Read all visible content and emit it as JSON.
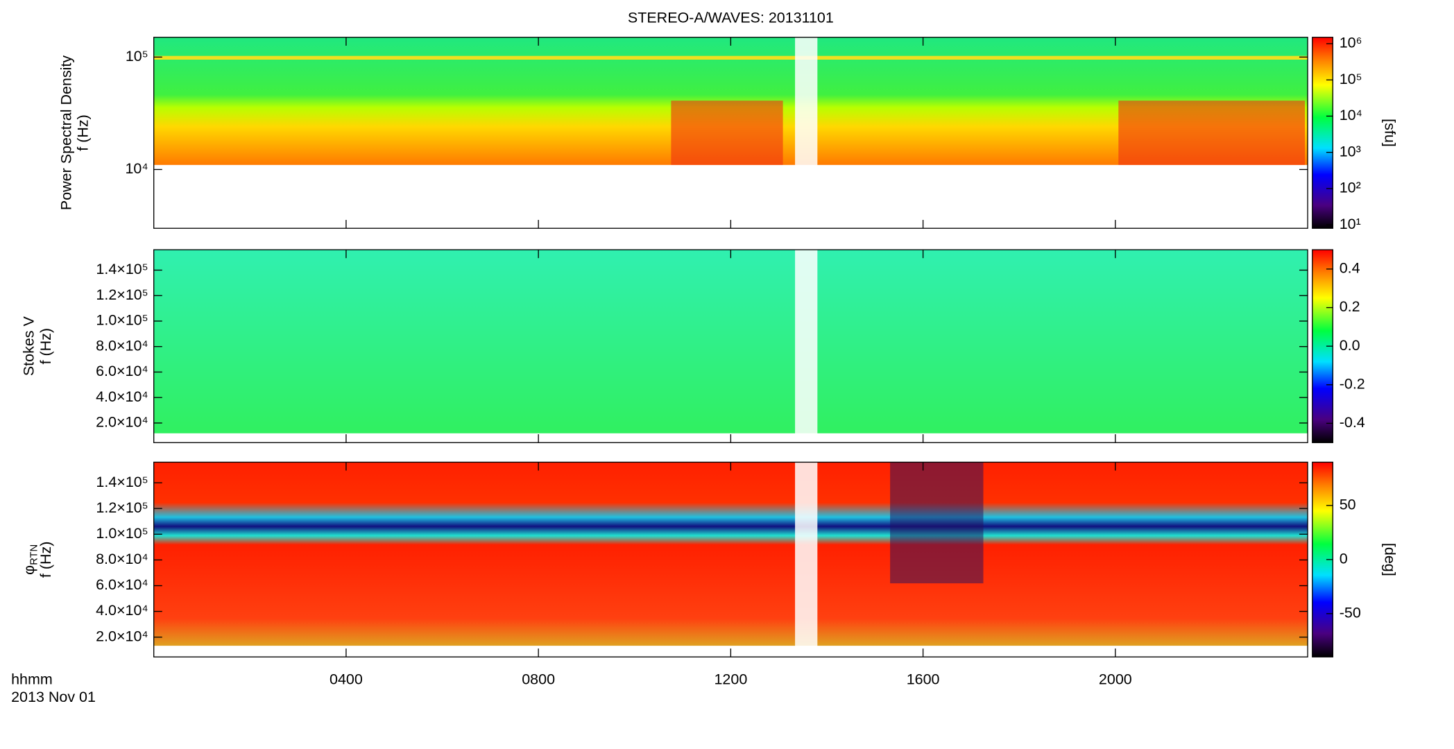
{
  "chart_data": [
    {
      "type": "heatmap",
      "title": "STEREO-A/WAVES: 20131101",
      "quantity": "Power Spectral Density",
      "ylabel": "f (Hz)",
      "ylog": true,
      "ylim": [
        3000,
        150000
      ],
      "yticks": [
        {
          "value": 10000,
          "label": "10⁴"
        },
        {
          "value": 100000,
          "label": "10⁵"
        }
      ],
      "xlim": [
        0,
        24
      ],
      "colorbar": {
        "label": "[sfu]",
        "log": true,
        "lim": [
          8,
          1500000
        ],
        "ticks": [
          {
            "value": 10,
            "label": "10¹"
          },
          {
            "value": 100,
            "label": "10²"
          },
          {
            "value": 1000,
            "label": "10³"
          },
          {
            "value": 10000,
            "label": "10⁴"
          },
          {
            "value": 100000,
            "label": "10⁵"
          },
          {
            "value": 1000000,
            "label": "10⁶"
          }
        ]
      }
    },
    {
      "type": "heatmap",
      "quantity": "Stokes V",
      "ylabel": "f (Hz)",
      "ylog": false,
      "ylim": [
        4600,
        156000
      ],
      "yticks": [
        {
          "value": 20000,
          "label": "2.0×10⁴"
        },
        {
          "value": 40000,
          "label": "4.0×10⁴"
        },
        {
          "value": 60000,
          "label": "6.0×10⁴"
        },
        {
          "value": 80000,
          "label": "8.0×10⁴"
        },
        {
          "value": 100000,
          "label": "1.0×10⁵"
        },
        {
          "value": 120000,
          "label": "1.2×10⁵"
        },
        {
          "value": 140000,
          "label": "1.4×10⁵"
        }
      ],
      "xlim": [
        0,
        24
      ],
      "colorbar": {
        "log": false,
        "lim": [
          -0.5,
          0.5
        ],
        "ticks": [
          0.4,
          0.2,
          {
            "value": 0,
            "label": "0.0"
          },
          -0.2,
          -0.4
        ]
      }
    },
    {
      "type": "heatmap",
      "quantity": "φ",
      "quantity_subscript": "RTN",
      "ylabel": "f (Hz)",
      "ylog": false,
      "ylim": [
        4600,
        156000
      ],
      "yticks": [
        {
          "value": 20000,
          "label": "2.0×10⁴"
        },
        {
          "value": 40000,
          "label": "4.0×10⁴"
        },
        {
          "value": 60000,
          "label": "6.0×10⁴"
        },
        {
          "value": 80000,
          "label": "8.0×10⁴"
        },
        {
          "value": 100000,
          "label": "1.0×10⁵"
        },
        {
          "value": 120000,
          "label": "1.2×10⁵"
        },
        {
          "value": 140000,
          "label": "1.4×10⁵"
        }
      ],
      "xlim": [
        0,
        24
      ],
      "xlabel": "hhmm",
      "date": "2013 Nov 01",
      "xticks": [
        {
          "value": 4,
          "label": "0400"
        },
        {
          "value": 8,
          "label": "0800"
        },
        {
          "value": 12,
          "label": "1200"
        },
        {
          "value": 16,
          "label": "1600"
        },
        {
          "value": 20,
          "label": "2000"
        }
      ],
      "colorbar": {
        "label": "[deg]",
        "log": false,
        "lim": [
          -90,
          90
        ],
        "ticks": [
          50,
          0,
          -50
        ]
      }
    }
  ]
}
